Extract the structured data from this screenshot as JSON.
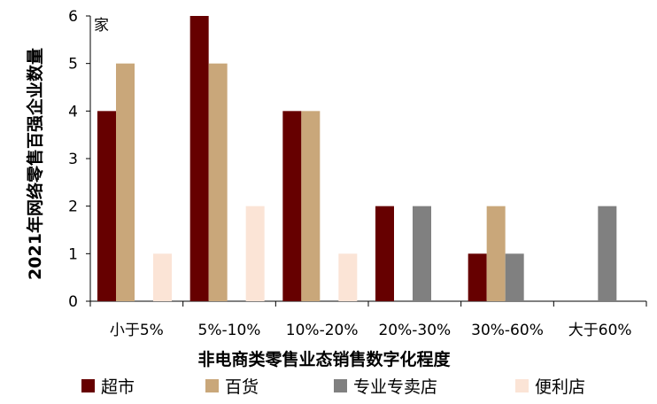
{
  "chart_data": {
    "type": "bar",
    "ylabel": "2021年网络零售百强企业数量",
    "xlabel": "非电商类零售业态销售数字化程度",
    "unit_label": "家",
    "ylim": [
      0,
      6
    ],
    "yticks": [
      0,
      1,
      2,
      3,
      4,
      5,
      6
    ],
    "categories": [
      "小于5%",
      "5%-10%",
      "10%-20%",
      "20%-30%",
      "30%-60%",
      "大于60%"
    ],
    "series": [
      {
        "name": "超市",
        "color": "#660000",
        "values": [
          4,
          6,
          4,
          2,
          1,
          0
        ]
      },
      {
        "name": "百货",
        "color": "#c9a77a",
        "values": [
          5,
          5,
          4,
          0,
          2,
          0
        ]
      },
      {
        "name": "专业专卖店",
        "color": "#808080",
        "values": [
          0,
          0,
          0,
          2,
          1,
          2
        ]
      },
      {
        "name": "便利店",
        "color": "#fbe4d6",
        "values": [
          1,
          2,
          1,
          0,
          0,
          0
        ]
      }
    ],
    "legend_position": "bottom",
    "grid": false
  }
}
